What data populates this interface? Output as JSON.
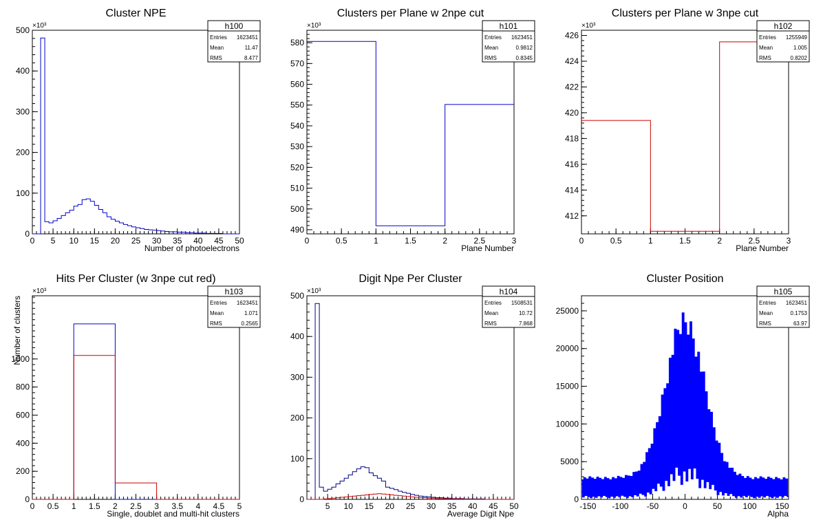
{
  "chart_data": [
    {
      "id": "h100",
      "type": "histogram",
      "title": "Cluster NPE",
      "xlabel": "Number of photoelectrons",
      "ylabel": "",
      "xlim": [
        0,
        50
      ],
      "ylim": [
        0,
        500
      ],
      "y_exponent": "×10³",
      "xticks": [
        0,
        5,
        10,
        15,
        20,
        25,
        30,
        35,
        40,
        45,
        50
      ],
      "yticks": [
        0,
        100,
        200,
        300,
        400,
        500
      ],
      "stats": [
        {
          "label": "Entries",
          "value": "1623451"
        },
        {
          "label": "Mean",
          "value": "11.47"
        },
        {
          "label": "RMS",
          "value": "8.477"
        }
      ],
      "series": [
        {
          "color": "#0000cc",
          "edges": [
            0,
            2,
            3,
            4,
            5,
            6,
            7,
            8,
            9,
            10,
            11,
            12,
            13,
            14,
            15,
            16,
            17,
            18,
            19,
            20,
            21,
            22,
            23,
            24,
            25,
            26,
            27,
            28,
            29,
            30,
            31,
            32,
            33,
            34,
            35,
            36,
            37,
            38,
            39,
            40,
            41,
            42,
            43,
            44,
            45,
            46,
            47,
            48,
            49,
            50
          ],
          "values": [
            0,
            481,
            30,
            27,
            32,
            38,
            45,
            52,
            58,
            68,
            72,
            84,
            86,
            80,
            70,
            60,
            52,
            42,
            36,
            31,
            27,
            23,
            20,
            17,
            15,
            13,
            11,
            10,
            9,
            8,
            7,
            6,
            5,
            5,
            4,
            4,
            3,
            3,
            2,
            2,
            2,
            1,
            1,
            1,
            1,
            0,
            0,
            0,
            0
          ]
        }
      ]
    },
    {
      "id": "h101",
      "type": "histogram",
      "title": "Clusters per Plane w 2npe cut",
      "xlabel": "Plane Number",
      "ylabel": "",
      "xlim": [
        0,
        3
      ],
      "ylim": [
        488,
        586
      ],
      "y_exponent": "×10³",
      "xticks": [
        0,
        0.5,
        1,
        1.5,
        2,
        2.5,
        3
      ],
      "yticks": [
        490,
        500,
        510,
        520,
        530,
        540,
        550,
        560,
        570,
        580
      ],
      "stats": [
        {
          "label": "Entries",
          "value": "1623451"
        },
        {
          "label": "Mean",
          "value": "0.9812"
        },
        {
          "label": "RMS",
          "value": "0.8345"
        }
      ],
      "series": [
        {
          "color": "#0000cc",
          "edges": [
            0,
            1,
            2,
            3
          ],
          "values": [
            580.6,
            491.9,
            550.3
          ]
        }
      ]
    },
    {
      "id": "h102",
      "type": "histogram",
      "title": "Clusters per Plane w 3npe cut",
      "xlabel": "Plane Number",
      "ylabel": "",
      "xlim": [
        0,
        3
      ],
      "ylim": [
        410.6,
        426.4
      ],
      "y_exponent": "×10³",
      "xticks": [
        0,
        0.5,
        1,
        1.5,
        2,
        2.5,
        3
      ],
      "yticks": [
        412,
        414,
        416,
        418,
        420,
        422,
        424,
        426
      ],
      "stats": [
        {
          "label": "Entries",
          "value": "1255949"
        },
        {
          "label": "Mean",
          "value": "1.005"
        },
        {
          "label": "RMS",
          "value": "0.8202"
        }
      ],
      "series": [
        {
          "color": "#cc0000",
          "edges": [
            0,
            1,
            2,
            3
          ],
          "values": [
            419.4,
            410.8,
            425.5
          ]
        }
      ]
    },
    {
      "id": "h103",
      "type": "histogram",
      "title": "Hits Per Cluster (w 3npe cut red)",
      "xlabel": "Single, doublet and multi-hit clusters",
      "ylabel": "Number of clusters",
      "xlim": [
        0,
        5
      ],
      "ylim": [
        0,
        1450
      ],
      "y_exponent": "×10³",
      "xticks": [
        0,
        0.5,
        1,
        1.5,
        2,
        2.5,
        3,
        3.5,
        4,
        4.5,
        5
      ],
      "yticks": [
        0,
        200,
        400,
        600,
        800,
        1000
      ],
      "stats": [
        {
          "label": "Entries",
          "value": "1623451"
        },
        {
          "label": "Mean",
          "value": "1.071"
        },
        {
          "label": "RMS",
          "value": "0.2565"
        }
      ],
      "series": [
        {
          "color": "#0000cc",
          "edges": [
            0,
            1,
            2,
            3,
            4,
            5
          ],
          "values": [
            0,
            1250,
            0,
            0,
            0
          ]
        },
        {
          "color": "#cc0000",
          "edges": [
            0,
            1,
            2,
            3,
            4,
            5
          ],
          "values": [
            0,
            1025,
            117,
            0,
            0
          ]
        }
      ]
    },
    {
      "id": "h104",
      "type": "histogram",
      "title": "Digit Npe Per Cluster",
      "xlabel": "Average Digit Npe",
      "ylabel": "",
      "xlim": [
        0,
        50
      ],
      "ylim": [
        0,
        500
      ],
      "y_exponent": "×10³",
      "xticks": [
        5,
        10,
        15,
        20,
        25,
        30,
        35,
        40,
        45,
        50
      ],
      "yticks": [
        0,
        100,
        200,
        300,
        400,
        500
      ],
      "stats": [
        {
          "label": "Entries",
          "value": "1508531"
        },
        {
          "label": "Mean",
          "value": "10.72"
        },
        {
          "label": "RMS",
          "value": "7.868"
        }
      ],
      "series": [
        {
          "color": "#000080",
          "edges": [
            0,
            2,
            3,
            4,
            5,
            6,
            7,
            8,
            9,
            10,
            11,
            12,
            13,
            14,
            15,
            16,
            17,
            18,
            19,
            20,
            21,
            22,
            23,
            24,
            25,
            26,
            27,
            28,
            29,
            30,
            31,
            32,
            33,
            34,
            35,
            36,
            37,
            38,
            39,
            40,
            41,
            42,
            43,
            44,
            45,
            46,
            47,
            48,
            49,
            50
          ],
          "values": [
            0,
            481,
            30,
            20,
            25,
            30,
            38,
            45,
            52,
            60,
            68,
            75,
            80,
            78,
            65,
            58,
            52,
            45,
            30,
            27,
            24,
            20,
            17,
            15,
            12,
            10,
            8,
            7,
            6,
            5,
            4,
            4,
            3,
            3,
            2,
            2,
            2,
            1,
            1,
            1,
            1,
            1,
            0,
            0,
            0,
            0,
            0,
            0,
            0
          ]
        },
        {
          "color": "#cc0000",
          "edges": [
            0,
            2,
            3,
            4,
            5,
            6,
            7,
            8,
            9,
            10,
            11,
            12,
            13,
            14,
            15,
            16,
            17,
            18,
            19,
            20,
            21,
            22,
            23,
            24,
            25,
            26,
            27,
            28,
            29,
            30,
            31,
            32,
            33,
            34,
            35,
            36,
            37,
            38,
            39,
            40,
            41,
            42,
            43,
            44,
            45,
            46,
            47,
            48,
            49,
            50
          ],
          "values": [
            0,
            0,
            0,
            1,
            2,
            3,
            4,
            5,
            6,
            7,
            8,
            9,
            10,
            11,
            12,
            13,
            14,
            13,
            12,
            11,
            10,
            9,
            8,
            7,
            6,
            5,
            4,
            4,
            3,
            3,
            2,
            2,
            2,
            1,
            1,
            1,
            1,
            0,
            0,
            0,
            0,
            0,
            0,
            0,
            0,
            0,
            0,
            0,
            0
          ]
        }
      ]
    },
    {
      "id": "h105",
      "type": "histogram",
      "title": "Cluster Position",
      "xlabel": "Alpha",
      "ylabel": "",
      "xlim": [
        -160,
        160
      ],
      "ylim": [
        0,
        27000
      ],
      "y_exponent": "",
      "xticks": [
        -150,
        -100,
        -50,
        0,
        50,
        100,
        150
      ],
      "yticks": [
        0,
        5000,
        10000,
        15000,
        20000,
        25000
      ],
      "stats": [
        {
          "label": "Entries",
          "value": "1623451"
        },
        {
          "label": "Mean",
          "value": "0.1753"
        },
        {
          "label": "RMS",
          "value": "63.97"
        }
      ],
      "series": [
        {
          "color": "#0000ff",
          "spiky": true,
          "xrange": [
            -160,
            160
          ],
          "bins": 160,
          "peak": 25500,
          "base": 3000,
          "width": 30
        }
      ]
    }
  ]
}
